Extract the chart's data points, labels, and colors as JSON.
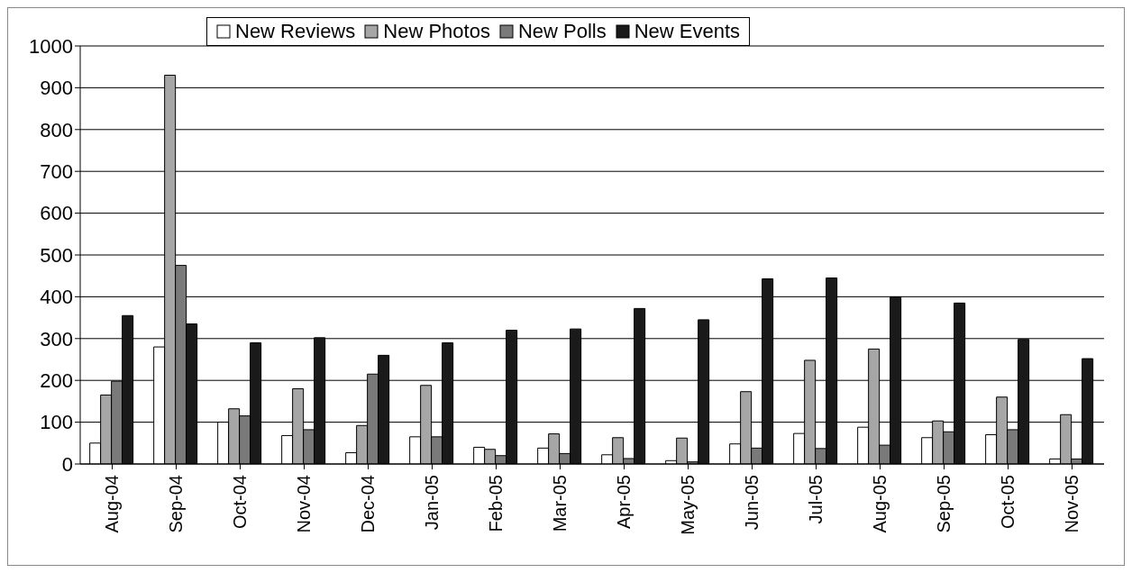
{
  "chart_data": {
    "type": "bar",
    "categories": [
      "Aug-04",
      "Sep-04",
      "Oct-04",
      "Nov-04",
      "Dec-04",
      "Jan-05",
      "Feb-05",
      "Mar-05",
      "Apr-05",
      "May-05",
      "Jun-05",
      "Jul-05",
      "Aug-05",
      "Sep-05",
      "Oct-05",
      "Nov-05"
    ],
    "series": [
      {
        "name": "New Reviews",
        "color": "#ffffff",
        "values": [
          50,
          280,
          100,
          68,
          27,
          65,
          40,
          38,
          22,
          8,
          48,
          73,
          88,
          63,
          70,
          12
        ]
      },
      {
        "name": "New Photos",
        "color": "#a6a6a6",
        "values": [
          165,
          930,
          132,
          180,
          92,
          188,
          35,
          72,
          63,
          62,
          173,
          248,
          275,
          103,
          160,
          118
        ]
      },
      {
        "name": "New Polls",
        "color": "#7a7a7a",
        "values": [
          198,
          475,
          115,
          82,
          215,
          65,
          20,
          25,
          13,
          5,
          38,
          37,
          45,
          77,
          82,
          12
        ]
      },
      {
        "name": "New Events",
        "color": "#1a1a1a",
        "values": [
          355,
          335,
          290,
          302,
          260,
          290,
          320,
          323,
          372,
          345,
          443,
          445,
          400,
          385,
          298,
          252
        ]
      }
    ],
    "ylim": [
      0,
      1000
    ],
    "yticks": [
      0,
      100,
      200,
      300,
      400,
      500,
      600,
      700,
      800,
      900,
      1000
    ],
    "grid": "y",
    "legend": "top"
  }
}
